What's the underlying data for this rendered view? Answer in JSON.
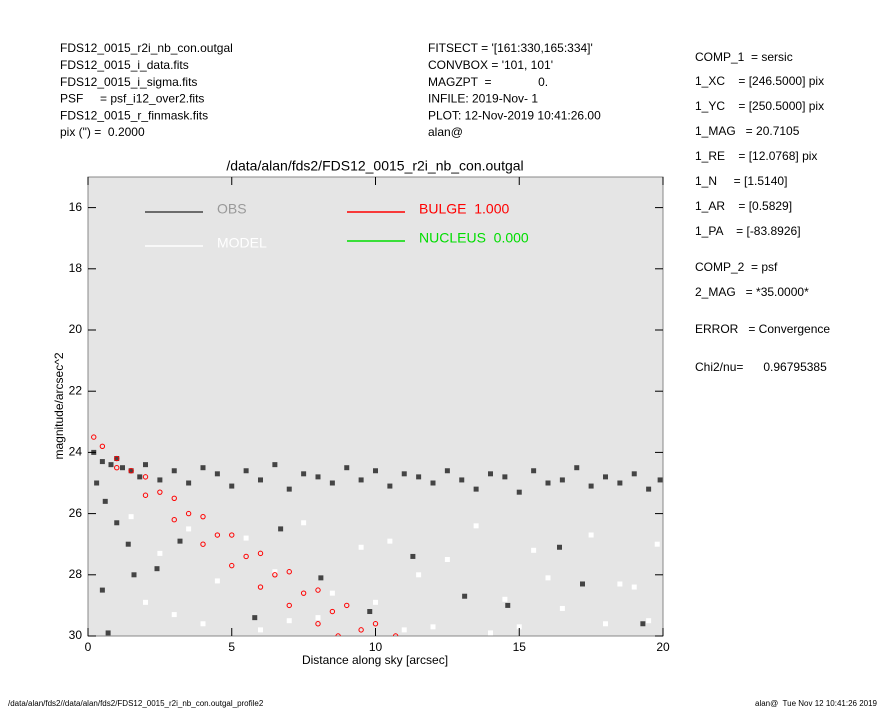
{
  "info_left": [
    "FDS12_0015_r2i_nb_con.outgal",
    "FDS12_0015_i_data.fits",
    "FDS12_0015_i_sigma.fits",
    "PSF     = psf_i12_over2.fits",
    "FDS12_0015_r_finmask.fits",
    "pix (\") =  0.2000"
  ],
  "info_middle": [
    "FITSECT = '[161:330,165:334]'",
    "CONVBOX = '101, 101'",
    "MAGZPT  =              0.",
    "INFILE: 2019-Nov- 1",
    "PLOT: 12-Nov-2019 10:41:26.00",
    "alan@"
  ],
  "info_right": [
    "COMP_1  = sersic",
    "1_XC    = [246.5000] pix",
    "1_YC    = [250.5000] pix",
    "1_MAG   = 20.7105",
    "1_RE    = [12.0768] pix",
    "1_N     = [1.5140]",
    "1_AR    = [0.5829]",
    "1_PA    = [-83.8926]",
    "COMP_2  = psf",
    "2_MAG   = *35.0000*",
    "ERROR   = Convergence",
    "Chi2/nu=      0.96795385"
  ],
  "footer_left": "/data/alan/fds2//data/alan/fds2/FDS12_0015_r2i_nb_con.outgal_profile2",
  "footer_right": "alan@  Tue Nov 12 10:41:26 2019",
  "chart_data": {
    "type": "scatter",
    "title": "/data/alan/fds2/FDS12_0015_r2i_nb_con.outgal",
    "x_label": "Distance along sky [arcsec]",
    "y_label": "magnitude/arcsec^2",
    "xlim": [
      0,
      20
    ],
    "xticks": [
      0,
      5,
      10,
      15,
      20
    ],
    "ylim": [
      30,
      15
    ],
    "yticks": [
      16,
      18,
      20,
      22,
      24,
      26,
      28,
      30
    ],
    "background": "#e5e5e5",
    "series": [
      {
        "name": "OBS",
        "color": "#444444",
        "x": [
          0.2,
          0.5,
          0.8,
          1.0,
          1.2,
          1.5,
          1.8,
          2.0,
          2.5,
          3.0,
          3.5,
          4.0,
          4.5,
          5.0,
          5.5,
          6.0,
          6.5,
          7.0,
          7.5,
          8.0,
          8.5,
          9.0,
          9.5,
          10.0,
          10.5,
          11.0,
          11.5,
          12.0,
          12.5,
          13.0,
          13.5,
          14.0,
          14.5,
          15.0,
          15.5,
          16.0,
          16.5,
          17.0,
          17.5,
          18.0,
          18.5,
          19.0,
          19.5,
          19.9,
          0.3,
          0.6,
          1.0,
          1.4,
          0.5,
          1.6,
          3.2,
          5.8,
          8.1,
          11.3,
          14.6,
          17.2,
          19.3,
          0.7,
          2.4,
          6.7,
          9.8,
          13.1,
          16.4
        ],
        "values": [
          24.0,
          24.3,
          24.4,
          24.2,
          24.5,
          24.6,
          24.8,
          24.4,
          24.9,
          24.6,
          25.0,
          24.5,
          24.7,
          25.1,
          24.6,
          24.9,
          24.4,
          25.2,
          24.7,
          24.8,
          25.0,
          24.5,
          24.9,
          24.6,
          25.1,
          24.7,
          24.8,
          25.0,
          24.6,
          24.9,
          25.2,
          24.7,
          24.8,
          25.3,
          24.6,
          25.0,
          24.9,
          24.5,
          25.1,
          24.8,
          25.0,
          24.7,
          25.2,
          24.9,
          25.0,
          25.6,
          26.3,
          27.0,
          28.5,
          28.0,
          26.9,
          29.4,
          28.1,
          27.4,
          29.0,
          28.3,
          29.6,
          29.9,
          27.8,
          26.5,
          29.2,
          28.7,
          27.1
        ]
      },
      {
        "name": "MODEL",
        "color": "#ffffff",
        "x": [
          1.5,
          2.5,
          3.5,
          4.5,
          5.5,
          6.5,
          7.5,
          8.5,
          9.5,
          10.5,
          11.5,
          12.5,
          13.5,
          14.5,
          15.5,
          16.5,
          17.5,
          18.5,
          19.5,
          2.0,
          4.0,
          6.0,
          8.0,
          10.0,
          12.0,
          14.0,
          16.0,
          18.0,
          19.8,
          3.0,
          7.0,
          11.0,
          15.0,
          19.0
        ],
        "values": [
          26.1,
          27.3,
          26.5,
          28.2,
          26.8,
          27.9,
          26.3,
          28.6,
          27.1,
          26.9,
          28.0,
          27.5,
          26.4,
          28.8,
          27.2,
          29.1,
          26.7,
          28.3,
          29.5,
          28.9,
          29.6,
          29.8,
          29.4,
          28.9,
          29.7,
          29.9,
          28.1,
          29.6,
          27.0,
          29.3,
          29.5,
          29.8,
          29.7,
          28.4
        ]
      },
      {
        "name": "BULGE  1.000",
        "color": "#ff0000",
        "x": [
          0.2,
          1,
          2,
          3,
          4,
          5,
          6,
          7,
          8,
          9,
          10,
          10.7,
          0.5,
          1.5,
          2.5,
          3.5,
          4.5,
          5.5,
          6.5,
          7.5,
          8.5,
          9.5,
          1,
          2,
          3,
          4,
          5,
          6,
          7,
          8,
          8.7
        ],
        "values": [
          23.5,
          24.2,
          24.8,
          25.5,
          26.1,
          26.7,
          27.3,
          27.9,
          28.5,
          29.0,
          29.6,
          30.0,
          23.8,
          24.6,
          25.3,
          26.0,
          26.7,
          27.4,
          28.0,
          28.6,
          29.2,
          29.8,
          24.5,
          25.4,
          26.2,
          27.0,
          27.7,
          28.4,
          29.0,
          29.6,
          30.0
        ]
      },
      {
        "name": "NUCLEUS  0.000",
        "color": "#00dd00",
        "x": [],
        "values": []
      }
    ]
  }
}
